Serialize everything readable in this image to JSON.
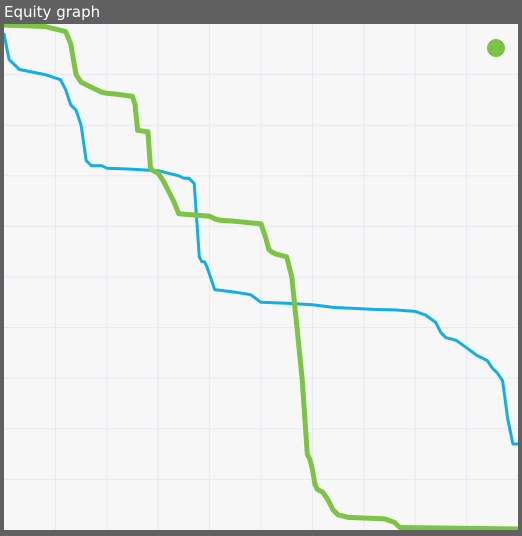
{
  "window": {
    "title": "Equity graph"
  },
  "colors": {
    "background": "#f7f7f7",
    "grid": "#e8e8f4",
    "frame": "#606060",
    "series_blue": "#11aee8",
    "series_green": "#7cc443",
    "legend_marker": "#7cc443"
  },
  "chart_data": {
    "type": "line",
    "title": "",
    "xlabel": "",
    "ylabel": "",
    "xlim": [
      0,
      100
    ],
    "ylim": [
      0,
      100
    ],
    "grid": true,
    "legend": "top-right",
    "series": [
      {
        "color": "#11aee8",
        "width": 3,
        "x": [
          0,
          1,
          2,
          3,
          8,
          11,
          12,
          13,
          14,
          15,
          16,
          17,
          19,
          20,
          25,
          30,
          34,
          35,
          36,
          37,
          38,
          38.5,
          39,
          39.5,
          41,
          45,
          48,
          50,
          55,
          60,
          64,
          68,
          72,
          76,
          80,
          82,
          84,
          85,
          86,
          88,
          90,
          92,
          94,
          95,
          96,
          97,
          98,
          99,
          100
        ],
        "y": [
          98,
          93,
          92,
          91,
          90,
          89,
          87,
          84,
          83,
          80,
          73,
          72,
          72,
          71.5,
          71.3,
          71,
          70,
          69.5,
          69.5,
          68.5,
          54,
          53,
          53,
          52,
          47.5,
          47,
          46.5,
          45,
          44.8,
          44.5,
          44,
          43.8,
          43.6,
          43.5,
          43.2,
          42.5,
          41,
          39,
          38,
          37.5,
          36,
          34.5,
          33.5,
          32,
          31,
          29.5,
          22,
          17,
          17
        ]
      },
      {
        "color": "#7cc443",
        "width": 5,
        "x": [
          0,
          8,
          12,
          13,
          14,
          15,
          16,
          17,
          18,
          19,
          20,
          22,
          25,
          25.5,
          26,
          28,
          28.5,
          29,
          30,
          31,
          32,
          33,
          34,
          40,
          41,
          42,
          45,
          50,
          51,
          51.5,
          52,
          53,
          55,
          56,
          57,
          58,
          59,
          59.5,
          60,
          60.5,
          61,
          62,
          63,
          64,
          65,
          67,
          74,
          76,
          77,
          100
        ],
        "y": [
          99.8,
          99.5,
          98.5,
          96,
          90,
          88.5,
          88,
          87.5,
          87,
          86.5,
          86.3,
          86.1,
          85.7,
          84,
          79,
          78.7,
          71.5,
          71,
          70.5,
          69,
          67,
          65,
          62.5,
          62,
          61.5,
          61.2,
          61,
          60.5,
          57.5,
          55.5,
          55,
          54.5,
          54,
          50,
          40,
          30,
          15,
          14,
          12,
          9,
          8,
          7.5,
          6,
          4,
          3,
          2.5,
          2.2,
          1.5,
          0.5,
          0.2
        ]
      }
    ]
  }
}
